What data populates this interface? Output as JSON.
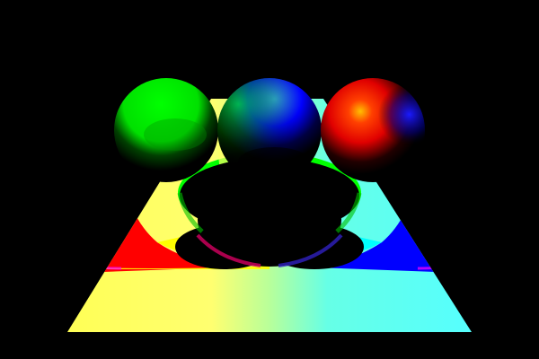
{
  "scene": {
    "background_color": "#000000",
    "description_colors": {
      "red": "#ff0000",
      "green": "#00ff00",
      "blue": "#0000ff",
      "yellow": "#ffff00",
      "cyan": "#00ffff",
      "magenta": "#ff00ff",
      "black": "#000000"
    },
    "spheres": [
      {
        "name": "sphere-green",
        "hint_color": "#00ff00"
      },
      {
        "name": "sphere-blue",
        "hint_color": "#0000ff"
      },
      {
        "name": "sphere-red",
        "hint_color": "#ff0000"
      }
    ]
  }
}
